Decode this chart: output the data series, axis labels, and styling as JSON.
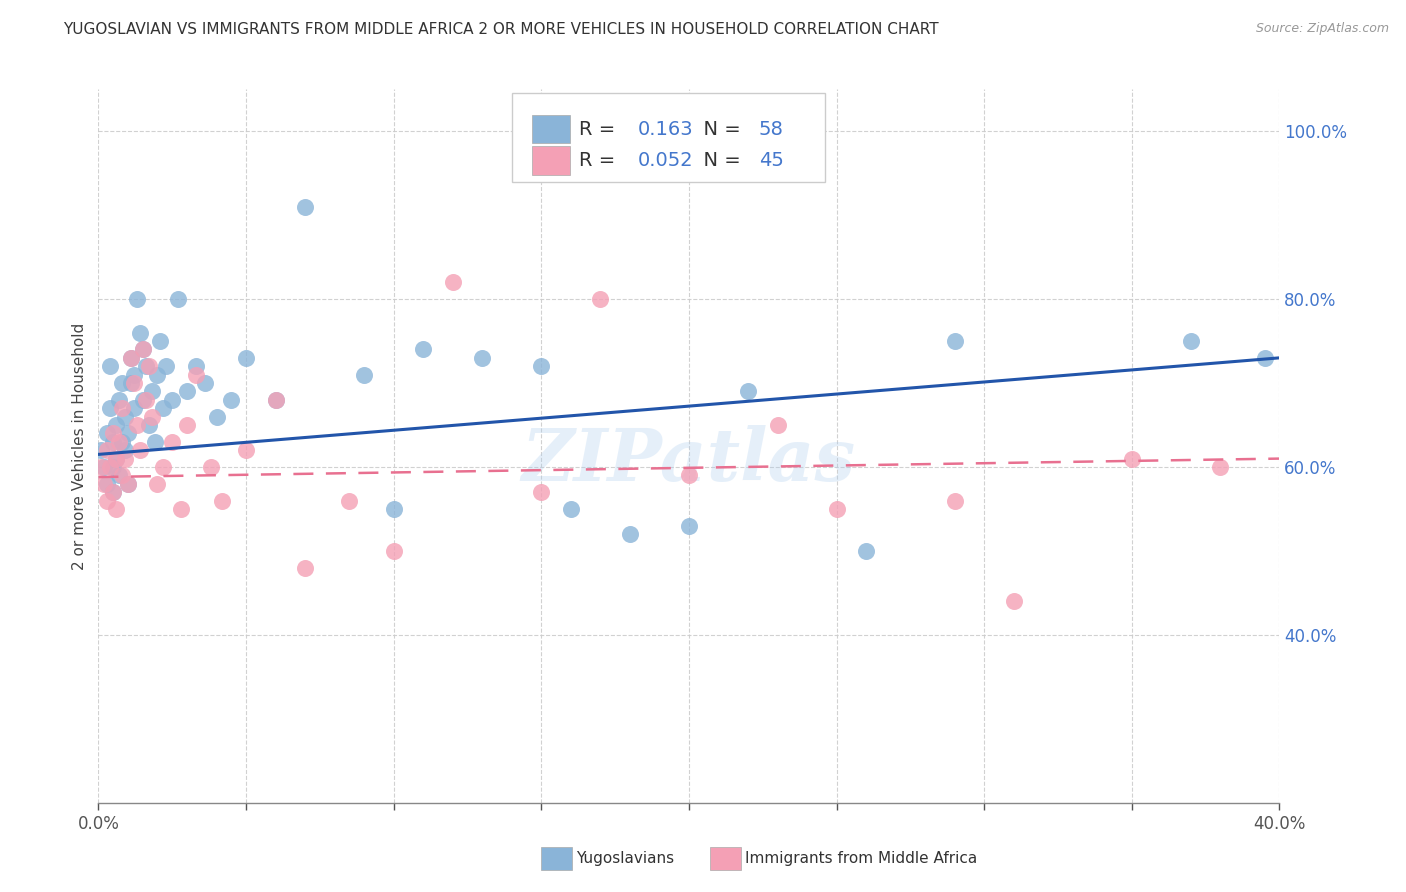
{
  "title": "YUGOSLAVIAN VS IMMIGRANTS FROM MIDDLE AFRICA 2 OR MORE VEHICLES IN HOUSEHOLD CORRELATION CHART",
  "source": "Source: ZipAtlas.com",
  "ylabel": "2 or more Vehicles in Household",
  "xmin": 0.0,
  "xmax": 0.4,
  "ymin": 0.2,
  "ymax": 1.05,
  "legend_blue_R": "0.163",
  "legend_blue_N": "58",
  "legend_pink_R": "0.052",
  "legend_pink_N": "45",
  "blue_color": "#8ab4d8",
  "pink_color": "#f4a0b5",
  "blue_line_color": "#2255aa",
  "pink_line_color": "#e87090",
  "watermark": "ZIPatlas",
  "blue_line_y0": 0.615,
  "blue_line_y1": 0.73,
  "pink_line_y0": 0.588,
  "pink_line_y1": 0.61,
  "blue_x": [
    0.001,
    0.002,
    0.003,
    0.003,
    0.004,
    0.004,
    0.005,
    0.005,
    0.005,
    0.006,
    0.006,
    0.007,
    0.007,
    0.008,
    0.008,
    0.009,
    0.009,
    0.01,
    0.01,
    0.011,
    0.011,
    0.012,
    0.012,
    0.013,
    0.014,
    0.015,
    0.015,
    0.016,
    0.017,
    0.018,
    0.019,
    0.02,
    0.021,
    0.022,
    0.023,
    0.025,
    0.027,
    0.03,
    0.033,
    0.036,
    0.04,
    0.045,
    0.05,
    0.06,
    0.07,
    0.09,
    0.1,
    0.11,
    0.13,
    0.15,
    0.16,
    0.18,
    0.2,
    0.22,
    0.26,
    0.29,
    0.37,
    0.395
  ],
  "blue_y": [
    0.62,
    0.6,
    0.64,
    0.58,
    0.67,
    0.72,
    0.6,
    0.63,
    0.57,
    0.65,
    0.61,
    0.68,
    0.59,
    0.63,
    0.7,
    0.62,
    0.66,
    0.64,
    0.58,
    0.7,
    0.73,
    0.67,
    0.71,
    0.8,
    0.76,
    0.74,
    0.68,
    0.72,
    0.65,
    0.69,
    0.63,
    0.71,
    0.75,
    0.67,
    0.72,
    0.68,
    0.8,
    0.69,
    0.72,
    0.7,
    0.66,
    0.68,
    0.73,
    0.68,
    0.91,
    0.71,
    0.55,
    0.74,
    0.73,
    0.72,
    0.55,
    0.52,
    0.53,
    0.69,
    0.5,
    0.75,
    0.75,
    0.73
  ],
  "pink_x": [
    0.001,
    0.002,
    0.003,
    0.003,
    0.004,
    0.005,
    0.005,
    0.006,
    0.006,
    0.007,
    0.008,
    0.008,
    0.009,
    0.01,
    0.011,
    0.012,
    0.013,
    0.014,
    0.015,
    0.016,
    0.017,
    0.018,
    0.02,
    0.022,
    0.025,
    0.028,
    0.03,
    0.033,
    0.038,
    0.042,
    0.05,
    0.06,
    0.07,
    0.085,
    0.1,
    0.12,
    0.15,
    0.17,
    0.2,
    0.23,
    0.25,
    0.29,
    0.31,
    0.35,
    0.38
  ],
  "pink_y": [
    0.6,
    0.58,
    0.62,
    0.56,
    0.6,
    0.57,
    0.64,
    0.61,
    0.55,
    0.63,
    0.59,
    0.67,
    0.61,
    0.58,
    0.73,
    0.7,
    0.65,
    0.62,
    0.74,
    0.68,
    0.72,
    0.66,
    0.58,
    0.6,
    0.63,
    0.55,
    0.65,
    0.71,
    0.6,
    0.56,
    0.62,
    0.68,
    0.48,
    0.56,
    0.5,
    0.82,
    0.57,
    0.8,
    0.59,
    0.65,
    0.55,
    0.56,
    0.44,
    0.61,
    0.6
  ]
}
